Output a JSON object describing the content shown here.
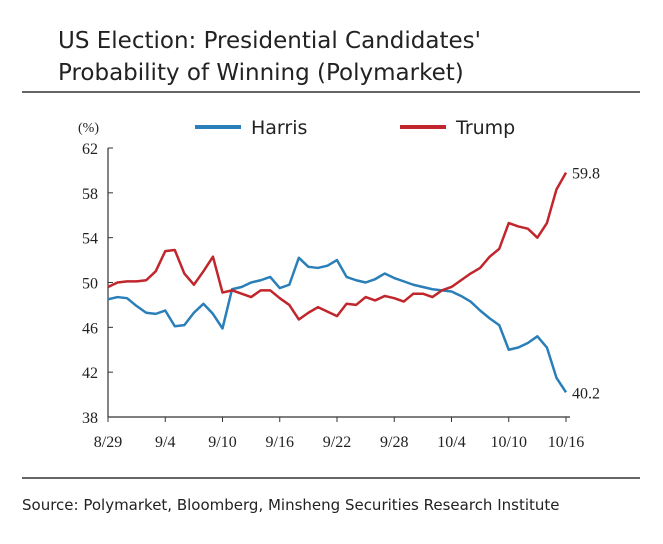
{
  "chart_data": {
    "type": "line",
    "title": "US Election: Presidential Candidates' Probability of Winning (Polymarket)",
    "title_lines": [
      "US Election: Presidential Candidates'",
      "Probability of Winning (Polymarket)"
    ],
    "y_label": "(%)",
    "source": "Source: Polymarket, Bloomberg, Minsheng Securities Research Institute",
    "categories": [
      "8/29",
      null,
      null,
      null,
      null,
      null,
      "9/4",
      null,
      null,
      null,
      null,
      null,
      "9/10",
      null,
      null,
      null,
      null,
      null,
      "9/16",
      null,
      null,
      null,
      null,
      null,
      "9/22",
      null,
      null,
      null,
      null,
      null,
      "9/28",
      null,
      null,
      null,
      null,
      null,
      "10/4",
      null,
      null,
      null,
      null,
      null,
      "10/10",
      null,
      null,
      null,
      null,
      null,
      "10/16"
    ],
    "series": [
      {
        "name": "Harris",
        "color": "#2a7fb8",
        "values": [
          48.5,
          48.7,
          48.6,
          47.9,
          47.3,
          47.2,
          47.5,
          46.1,
          46.2,
          47.3,
          48.1,
          47.2,
          45.9,
          49.4,
          49.6,
          50.0,
          50.2,
          50.5,
          49.5,
          49.8,
          52.2,
          51.4,
          51.3,
          51.5,
          52.0,
          50.5,
          50.2,
          50.0,
          50.3,
          50.8,
          50.4,
          50.1,
          49.8,
          49.6,
          49.4,
          49.3,
          49.2,
          48.8,
          48.3,
          47.5,
          46.8,
          46.2,
          44.0,
          44.2,
          44.6,
          45.2,
          44.2,
          41.5,
          40.2
        ]
      },
      {
        "name": "Trump",
        "color": "#c0262b",
        "values": [
          49.6,
          50.0,
          50.1,
          50.1,
          50.2,
          51.0,
          52.8,
          52.9,
          50.8,
          49.8,
          51.0,
          52.3,
          49.1,
          49.3,
          49.0,
          48.7,
          49.3,
          49.3,
          48.6,
          48.0,
          46.7,
          47.3,
          47.8,
          47.4,
          47.0,
          48.1,
          48.0,
          48.7,
          48.4,
          48.8,
          48.6,
          48.3,
          49.0,
          49.0,
          48.7,
          49.3,
          49.6,
          50.2,
          50.8,
          51.3,
          52.3,
          53.0,
          55.3,
          55.0,
          54.8,
          54.0,
          55.3,
          58.3,
          59.8
        ]
      }
    ],
    "ylim": [
      38,
      62
    ],
    "yticks": [
      38,
      42,
      46,
      50,
      54,
      58,
      62
    ],
    "grid": false
  }
}
